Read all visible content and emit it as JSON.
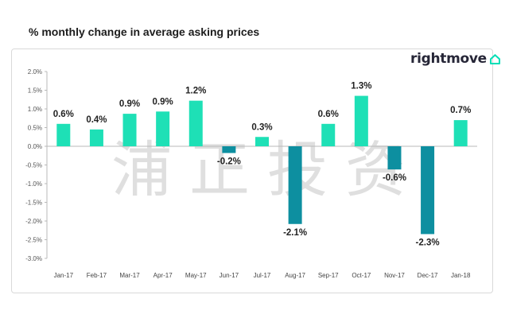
{
  "header": {
    "title": "% monthly change in average asking prices"
  },
  "brand": {
    "name": "rightmove",
    "icon": "house-outline-icon",
    "accent": "#00deb6",
    "text_color": "#262637"
  },
  "watermark": {
    "text": "浦正投资"
  },
  "colors": {
    "positive": "#1ee0b6",
    "negative": "#0d8fa0",
    "grid": "#b8b8b8"
  },
  "chart_data": {
    "type": "bar",
    "title": "% monthly change in average asking prices",
    "xlabel": "",
    "ylabel": "",
    "categories": [
      "Jan-17",
      "Feb-17",
      "Mar-17",
      "Apr-17",
      "May-17",
      "Jun-17",
      "Jul-17",
      "Aug-17",
      "Sep-17",
      "Oct-17",
      "Nov-17",
      "Dec-17",
      "Jan-18"
    ],
    "values": [
      0.6,
      0.45,
      0.87,
      0.93,
      1.22,
      -0.18,
      0.25,
      -2.08,
      0.6,
      1.35,
      -0.62,
      -2.35,
      0.7
    ],
    "data_labels": [
      "0.6%",
      "0.4%",
      "0.9%",
      "0.9%",
      "1.2%",
      "-0.2%",
      "0.3%",
      "-2.1%",
      "0.6%",
      "1.3%",
      "-0.6%",
      "-2.3%",
      "0.7%"
    ],
    "y_ticks": [
      2.0,
      1.5,
      1.0,
      0.5,
      0.0,
      -0.5,
      -1.0,
      -1.5,
      -2.0,
      -2.5,
      -3.0
    ],
    "y_tick_labels": [
      "2.0%",
      "1.5%",
      "1.0%",
      "0.5%",
      "0.0%",
      "-0.5%",
      "-1.0%",
      "-1.5%",
      "-2.0%",
      "-2.5%",
      "-3.0%"
    ],
    "ylim": [
      -3.0,
      2.0
    ],
    "grid": false,
    "legend": "none"
  }
}
